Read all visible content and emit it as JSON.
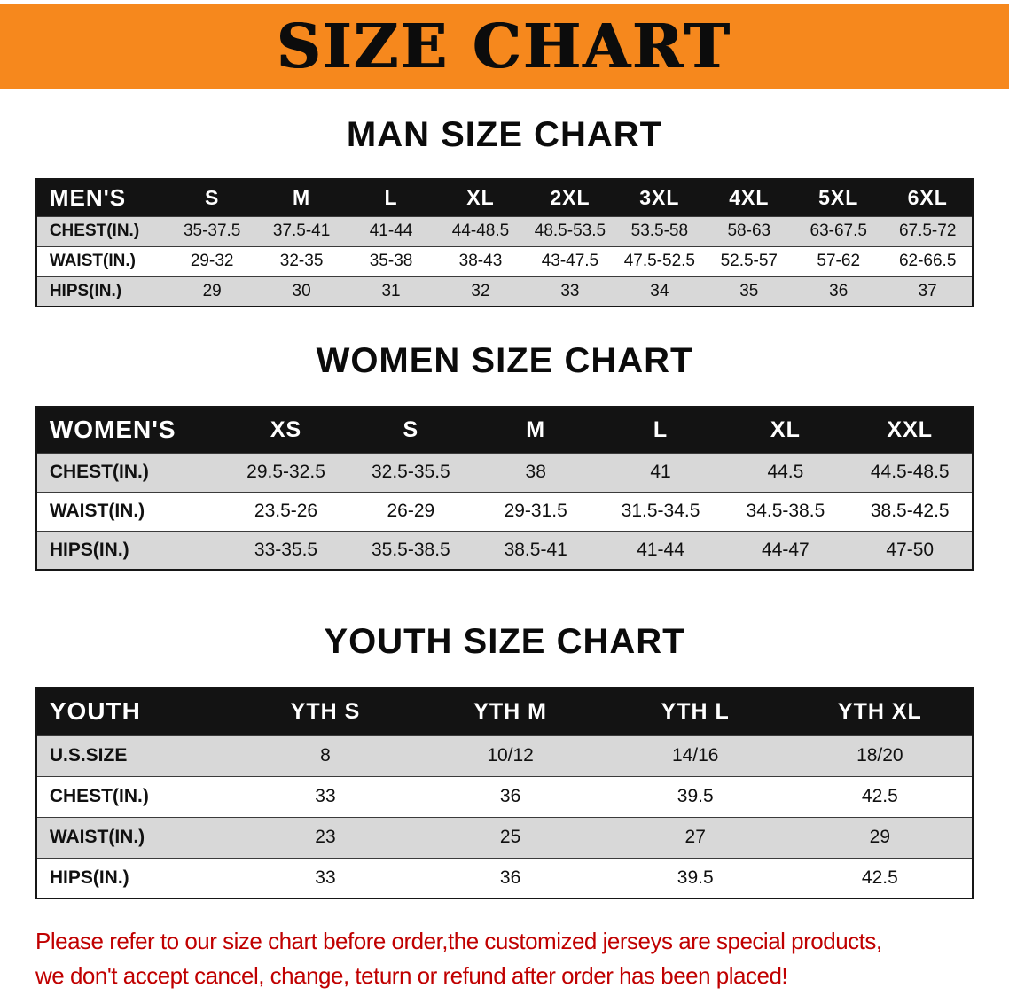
{
  "banner": {
    "title": "SIZE CHART"
  },
  "colors": {
    "banner_bg": "#F6881D",
    "header_bg": "#131313",
    "row_alt": "#D8D8D8",
    "disclaimer_color": "#C00000"
  },
  "sections": [
    {
      "id": "men",
      "heading": "MAN SIZE CHART",
      "table": {
        "header": [
          "MEN'S",
          "S",
          "M",
          "L",
          "XL",
          "2XL",
          "3XL",
          "4XL",
          "5XL",
          "6XL"
        ],
        "rows": [
          [
            "CHEST(IN.)",
            "35-37.5",
            "37.5-41",
            "41-44",
            "44-48.5",
            "48.5-53.5",
            "53.5-58",
            "58-63",
            "63-67.5",
            "67.5-72"
          ],
          [
            "WAIST(IN.)",
            "29-32",
            "32-35",
            "35-38",
            "38-43",
            "43-47.5",
            "47.5-52.5",
            "52.5-57",
            "57-62",
            "62-66.5"
          ],
          [
            "HIPS(IN.)",
            "29",
            "30",
            "31",
            "32",
            "33",
            "34",
            "35",
            "36",
            "37"
          ]
        ]
      }
    },
    {
      "id": "women",
      "heading": "WOMEN SIZE CHART",
      "table": {
        "header": [
          "WOMEN'S",
          "XS",
          "S",
          "M",
          "L",
          "XL",
          "XXL"
        ],
        "rows": [
          [
            "CHEST(IN.)",
            "29.5-32.5",
            "32.5-35.5",
            "38",
            "41",
            "44.5",
            "44.5-48.5"
          ],
          [
            "WAIST(IN.)",
            "23.5-26",
            "26-29",
            "29-31.5",
            "31.5-34.5",
            "34.5-38.5",
            "38.5-42.5"
          ],
          [
            "HIPS(IN.)",
            "33-35.5",
            "35.5-38.5",
            "38.5-41",
            "41-44",
            "44-47",
            "47-50"
          ]
        ]
      }
    },
    {
      "id": "youth",
      "heading": "YOUTH SIZE CHART",
      "table": {
        "header": [
          "YOUTH",
          "YTH S",
          "YTH M",
          "YTH L",
          "YTH XL"
        ],
        "rows": [
          [
            "U.S.SIZE",
            "8",
            "10/12",
            "14/16",
            "18/20"
          ],
          [
            "CHEST(IN.)",
            "33",
            "36",
            "39.5",
            "42.5"
          ],
          [
            "WAIST(IN.)",
            "23",
            "25",
            "27",
            "29"
          ],
          [
            "HIPS(IN.)",
            "33",
            "36",
            "39.5",
            "42.5"
          ]
        ]
      }
    }
  ],
  "disclaimer": {
    "lines": [
      "Please refer to our size chart before order,the customized jerseys are special products,",
      "we don't accept cancel, change, teturn or refund after order has been placed!"
    ]
  }
}
